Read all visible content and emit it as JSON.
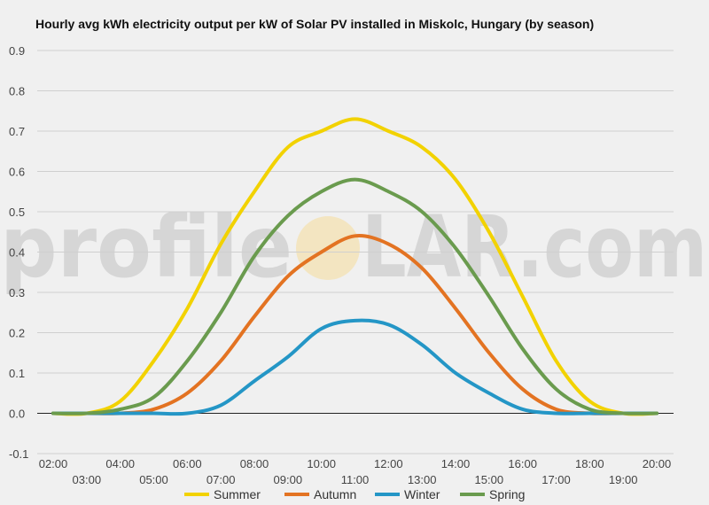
{
  "title": "Hourly avg kWh electricity output per kW of Solar PV installed in Miskolc, Hungary (by season)",
  "watermark": {
    "text_left": "profile",
    "text_right": "LAR.com",
    "sun_color": "#f3e3b8"
  },
  "chart_data": {
    "type": "line",
    "title": "Hourly avg kWh electricity output per kW of Solar PV installed in Miskolc, Hungary (by season)",
    "x": [
      "02:00",
      "03:00",
      "04:00",
      "05:00",
      "06:00",
      "07:00",
      "08:00",
      "09:00",
      "10:00",
      "11:00",
      "12:00",
      "13:00",
      "14:00",
      "15:00",
      "16:00",
      "17:00",
      "18:00",
      "19:00",
      "20:00"
    ],
    "x_tick_labels_row1": [
      "02:00",
      "04:00",
      "06:00",
      "08:00",
      "10:00",
      "12:00",
      "14:00",
      "16:00",
      "18:00",
      "20:00"
    ],
    "x_tick_labels_row2": [
      "03:00",
      "05:00",
      "07:00",
      "09:00",
      "11:00",
      "13:00",
      "15:00",
      "17:00",
      "19:00"
    ],
    "ylim": [
      -0.1,
      0.9
    ],
    "y_ticks": [
      "-0.1",
      "0.0",
      "0.1",
      "0.2",
      "0.3",
      "0.4",
      "0.5",
      "0.6",
      "0.7",
      "0.8",
      "0.9"
    ],
    "grid": true,
    "legend_position": "bottom",
    "series": [
      {
        "name": "Summer",
        "color": "#f2d200",
        "values": [
          0.0,
          0.0,
          0.03,
          0.13,
          0.26,
          0.42,
          0.55,
          0.66,
          0.7,
          0.73,
          0.7,
          0.66,
          0.58,
          0.45,
          0.29,
          0.13,
          0.03,
          0.0,
          0.0
        ]
      },
      {
        "name": "Autumn",
        "color": "#e37322",
        "values": [
          0.0,
          0.0,
          0.0,
          0.01,
          0.05,
          0.13,
          0.24,
          0.34,
          0.4,
          0.44,
          0.42,
          0.36,
          0.26,
          0.15,
          0.06,
          0.01,
          0.0,
          0.0,
          0.0
        ]
      },
      {
        "name": "Winter",
        "color": "#2496c6",
        "values": [
          0.0,
          0.0,
          0.0,
          0.0,
          0.0,
          0.02,
          0.08,
          0.14,
          0.21,
          0.23,
          0.22,
          0.17,
          0.1,
          0.05,
          0.01,
          0.0,
          0.0,
          0.0,
          0.0
        ]
      },
      {
        "name": "Spring",
        "color": "#6a9b4e",
        "values": [
          0.0,
          0.0,
          0.01,
          0.04,
          0.13,
          0.25,
          0.39,
          0.49,
          0.55,
          0.58,
          0.55,
          0.5,
          0.41,
          0.29,
          0.16,
          0.06,
          0.01,
          0.0,
          0.0
        ]
      }
    ]
  }
}
